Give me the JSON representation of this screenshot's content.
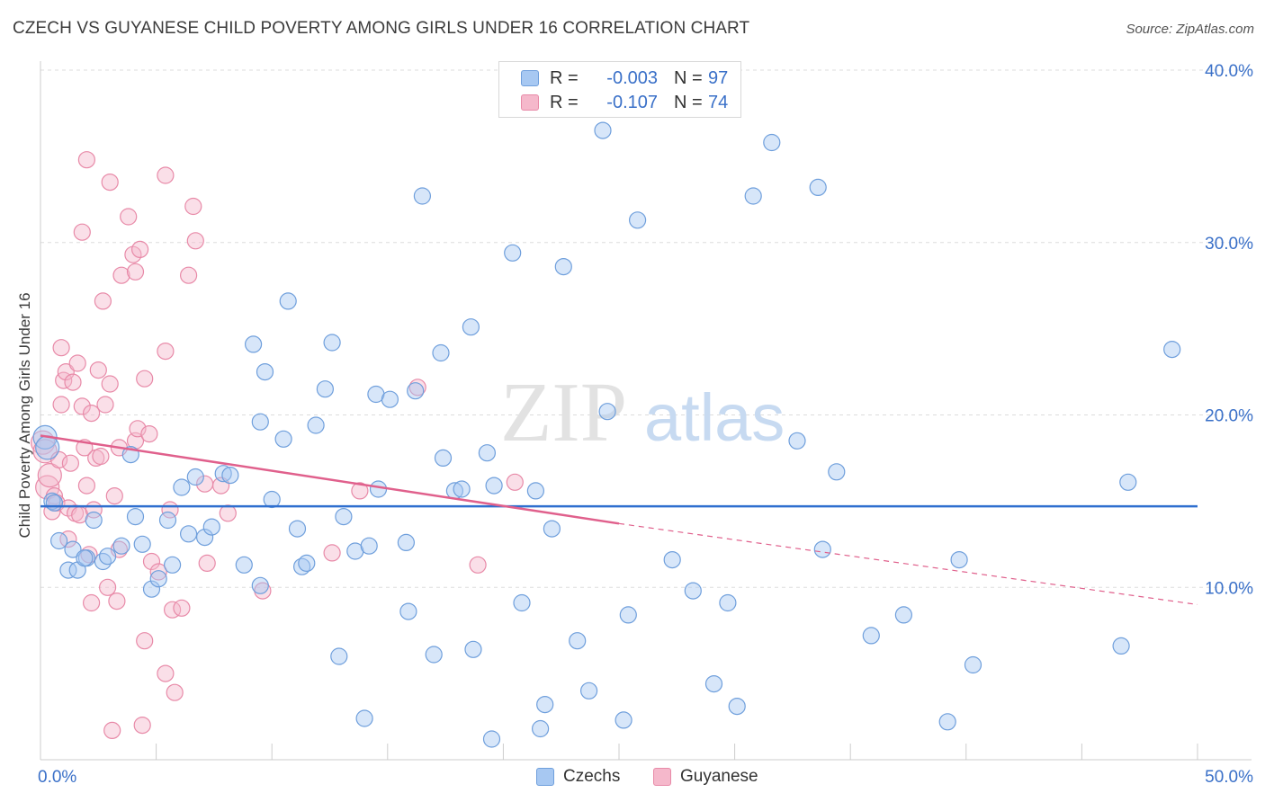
{
  "header": {
    "title": "CZECH VS GUYANESE CHILD POVERTY AMONG GIRLS UNDER 16 CORRELATION CHART",
    "source": "Source: ZipAtlas.com"
  },
  "watermark": {
    "zip": "ZIP",
    "atlas": "atlas"
  },
  "legend": {
    "rows": [
      {
        "r_label": "R =",
        "r_value": "-0.003",
        "n_label": "N =",
        "n_value": "97",
        "color": "#a7c8f2"
      },
      {
        "r_label": "R =",
        "r_value": "-0.107",
        "n_label": "N =",
        "n_value": "74",
        "color": "#f5b8cb"
      }
    ]
  },
  "bottom_legend": [
    {
      "label": "Czechs",
      "color": "#a7c8f2"
    },
    {
      "label": "Guyanese",
      "color": "#f5b8cb"
    }
  ],
  "colors": {
    "czech_fill": "#a7c8f2",
    "czech_stroke": "#6f9fdc",
    "czech_line": "#2f6fcf",
    "guyanese_fill": "#f5b8cb",
    "guyanese_stroke": "#e88aa8",
    "guyanese_line": "#e0608c",
    "tick_label": "#3a70c8",
    "grid": "#dddddd"
  },
  "chart_data": {
    "type": "scatter",
    "title": "CZECH VS GUYANESE CHILD POVERTY AMONG GIRLS UNDER 16 CORRELATION CHART",
    "xlabel": "",
    "ylabel": "Child Poverty Among Girls Under 16",
    "xlim": [
      0,
      50
    ],
    "ylim": [
      0,
      40
    ],
    "x_tick_labels": [
      "0.0%",
      "50.0%"
    ],
    "y_ticks": [
      10,
      20,
      30,
      40
    ],
    "y_tick_labels": [
      "10.0%",
      "20.0%",
      "30.0%",
      "40.0%"
    ],
    "grid": true,
    "legend_position": "top-center",
    "series": [
      {
        "name": "Czechs",
        "trend": {
          "x": [
            0,
            50
          ],
          "y": [
            14.7,
            14.7
          ]
        },
        "points": [
          [
            0.2,
            18.7
          ],
          [
            0.5,
            15.0
          ],
          [
            0.8,
            12.7
          ],
          [
            1.2,
            11.0
          ],
          [
            1.4,
            12.2
          ],
          [
            1.6,
            11.0
          ],
          [
            2.0,
            11.7
          ],
          [
            2.3,
            13.9
          ],
          [
            2.7,
            11.5
          ],
          [
            2.9,
            11.8
          ],
          [
            3.5,
            12.4
          ],
          [
            3.9,
            17.7
          ],
          [
            4.1,
            14.1
          ],
          [
            4.4,
            12.5
          ],
          [
            4.8,
            9.9
          ],
          [
            5.1,
            10.5
          ],
          [
            5.5,
            13.9
          ],
          [
            5.7,
            11.3
          ],
          [
            6.1,
            15.8
          ],
          [
            6.4,
            13.1
          ],
          [
            6.7,
            16.4
          ],
          [
            7.1,
            12.9
          ],
          [
            7.4,
            13.5
          ],
          [
            7.9,
            16.6
          ],
          [
            8.2,
            16.5
          ],
          [
            8.8,
            11.3
          ],
          [
            9.2,
            24.1
          ],
          [
            9.5,
            19.6
          ],
          [
            9.5,
            10.1
          ],
          [
            9.7,
            22.5
          ],
          [
            10.0,
            15.1
          ],
          [
            10.5,
            18.6
          ],
          [
            10.7,
            26.6
          ],
          [
            11.1,
            13.4
          ],
          [
            11.3,
            11.2
          ],
          [
            11.5,
            11.4
          ],
          [
            11.9,
            19.4
          ],
          [
            12.3,
            21.5
          ],
          [
            12.6,
            24.2
          ],
          [
            12.9,
            6.0
          ],
          [
            13.1,
            14.1
          ],
          [
            13.6,
            12.1
          ],
          [
            14.0,
            2.4
          ],
          [
            14.2,
            12.4
          ],
          [
            14.6,
            15.7
          ],
          [
            14.5,
            21.2
          ],
          [
            15.1,
            20.9
          ],
          [
            15.8,
            12.6
          ],
          [
            15.9,
            8.6
          ],
          [
            16.2,
            21.4
          ],
          [
            16.5,
            32.7
          ],
          [
            17.0,
            6.1
          ],
          [
            17.3,
            23.6
          ],
          [
            17.4,
            17.5
          ],
          [
            17.9,
            15.6
          ],
          [
            18.2,
            15.7
          ],
          [
            18.6,
            25.1
          ],
          [
            18.7,
            6.4
          ],
          [
            19.3,
            17.8
          ],
          [
            19.5,
            1.2
          ],
          [
            19.6,
            15.9
          ],
          [
            20.4,
            29.4
          ],
          [
            20.8,
            9.1
          ],
          [
            21.4,
            15.6
          ],
          [
            21.6,
            1.8
          ],
          [
            21.8,
            3.2
          ],
          [
            22.1,
            13.4
          ],
          [
            22.6,
            28.6
          ],
          [
            23.2,
            6.9
          ],
          [
            23.7,
            4.0
          ],
          [
            24.3,
            36.5
          ],
          [
            24.5,
            20.2
          ],
          [
            25.2,
            2.3
          ],
          [
            25.4,
            8.4
          ],
          [
            25.8,
            31.3
          ],
          [
            27.3,
            11.6
          ],
          [
            28.2,
            9.8
          ],
          [
            29.1,
            4.4
          ],
          [
            29.7,
            9.1
          ],
          [
            30.1,
            3.1
          ],
          [
            30.8,
            32.7
          ],
          [
            31.6,
            35.8
          ],
          [
            32.7,
            18.5
          ],
          [
            33.6,
            33.2
          ],
          [
            33.8,
            12.2
          ],
          [
            34.4,
            16.7
          ],
          [
            35.9,
            7.2
          ],
          [
            37.3,
            8.4
          ],
          [
            39.2,
            2.2
          ],
          [
            39.7,
            11.6
          ],
          [
            40.3,
            5.5
          ],
          [
            46.7,
            6.6
          ],
          [
            47.0,
            16.1
          ],
          [
            48.9,
            23.8
          ],
          [
            0.3,
            18.1
          ],
          [
            0.6,
            14.9
          ],
          [
            1.9,
            11.7
          ]
        ]
      },
      {
        "name": "Guyanese",
        "trend": {
          "x": [
            0,
            25,
            50
          ],
          "y": [
            18.8,
            13.7,
            9.0
          ]
        },
        "points": [
          [
            0.1,
            18.4
          ],
          [
            0.2,
            17.9
          ],
          [
            0.3,
            15.8
          ],
          [
            0.4,
            16.5
          ],
          [
            0.5,
            14.4
          ],
          [
            0.6,
            15.3
          ],
          [
            0.7,
            14.9
          ],
          [
            0.8,
            17.4
          ],
          [
            0.9,
            23.9
          ],
          [
            0.9,
            20.6
          ],
          [
            1.0,
            22.0
          ],
          [
            1.1,
            22.5
          ],
          [
            1.2,
            14.6
          ],
          [
            1.2,
            12.8
          ],
          [
            1.3,
            17.2
          ],
          [
            1.4,
            21.9
          ],
          [
            1.5,
            14.3
          ],
          [
            1.6,
            23.0
          ],
          [
            1.7,
            14.2
          ],
          [
            1.8,
            30.6
          ],
          [
            1.8,
            20.5
          ],
          [
            1.9,
            18.1
          ],
          [
            2.0,
            15.9
          ],
          [
            2.0,
            34.8
          ],
          [
            2.1,
            11.9
          ],
          [
            2.2,
            9.1
          ],
          [
            2.2,
            20.1
          ],
          [
            2.3,
            14.5
          ],
          [
            2.4,
            17.5
          ],
          [
            2.5,
            22.6
          ],
          [
            2.6,
            17.6
          ],
          [
            2.7,
            26.6
          ],
          [
            2.8,
            20.6
          ],
          [
            2.9,
            10.0
          ],
          [
            3.0,
            21.8
          ],
          [
            3.0,
            33.5
          ],
          [
            3.1,
            1.7
          ],
          [
            3.2,
            15.3
          ],
          [
            3.3,
            9.2
          ],
          [
            3.4,
            18.1
          ],
          [
            3.4,
            12.2
          ],
          [
            3.5,
            28.1
          ],
          [
            3.8,
            31.5
          ],
          [
            4.0,
            29.3
          ],
          [
            4.1,
            18.5
          ],
          [
            4.1,
            28.3
          ],
          [
            4.2,
            19.2
          ],
          [
            4.3,
            29.6
          ],
          [
            4.4,
            2.0
          ],
          [
            4.5,
            6.9
          ],
          [
            4.5,
            22.1
          ],
          [
            4.7,
            18.9
          ],
          [
            4.8,
            11.5
          ],
          [
            5.1,
            10.9
          ],
          [
            5.4,
            5.0
          ],
          [
            5.4,
            23.7
          ],
          [
            5.4,
            33.9
          ],
          [
            5.6,
            14.5
          ],
          [
            5.7,
            8.7
          ],
          [
            5.8,
            3.9
          ],
          [
            6.1,
            8.8
          ],
          [
            6.4,
            28.1
          ],
          [
            6.6,
            32.1
          ],
          [
            6.7,
            30.1
          ],
          [
            7.1,
            16.0
          ],
          [
            7.2,
            11.4
          ],
          [
            7.8,
            15.9
          ],
          [
            8.1,
            14.3
          ],
          [
            9.6,
            9.8
          ],
          [
            12.6,
            12.0
          ],
          [
            13.8,
            15.6
          ],
          [
            16.3,
            21.6
          ],
          [
            18.9,
            11.3
          ],
          [
            20.5,
            16.1
          ]
        ]
      }
    ]
  }
}
